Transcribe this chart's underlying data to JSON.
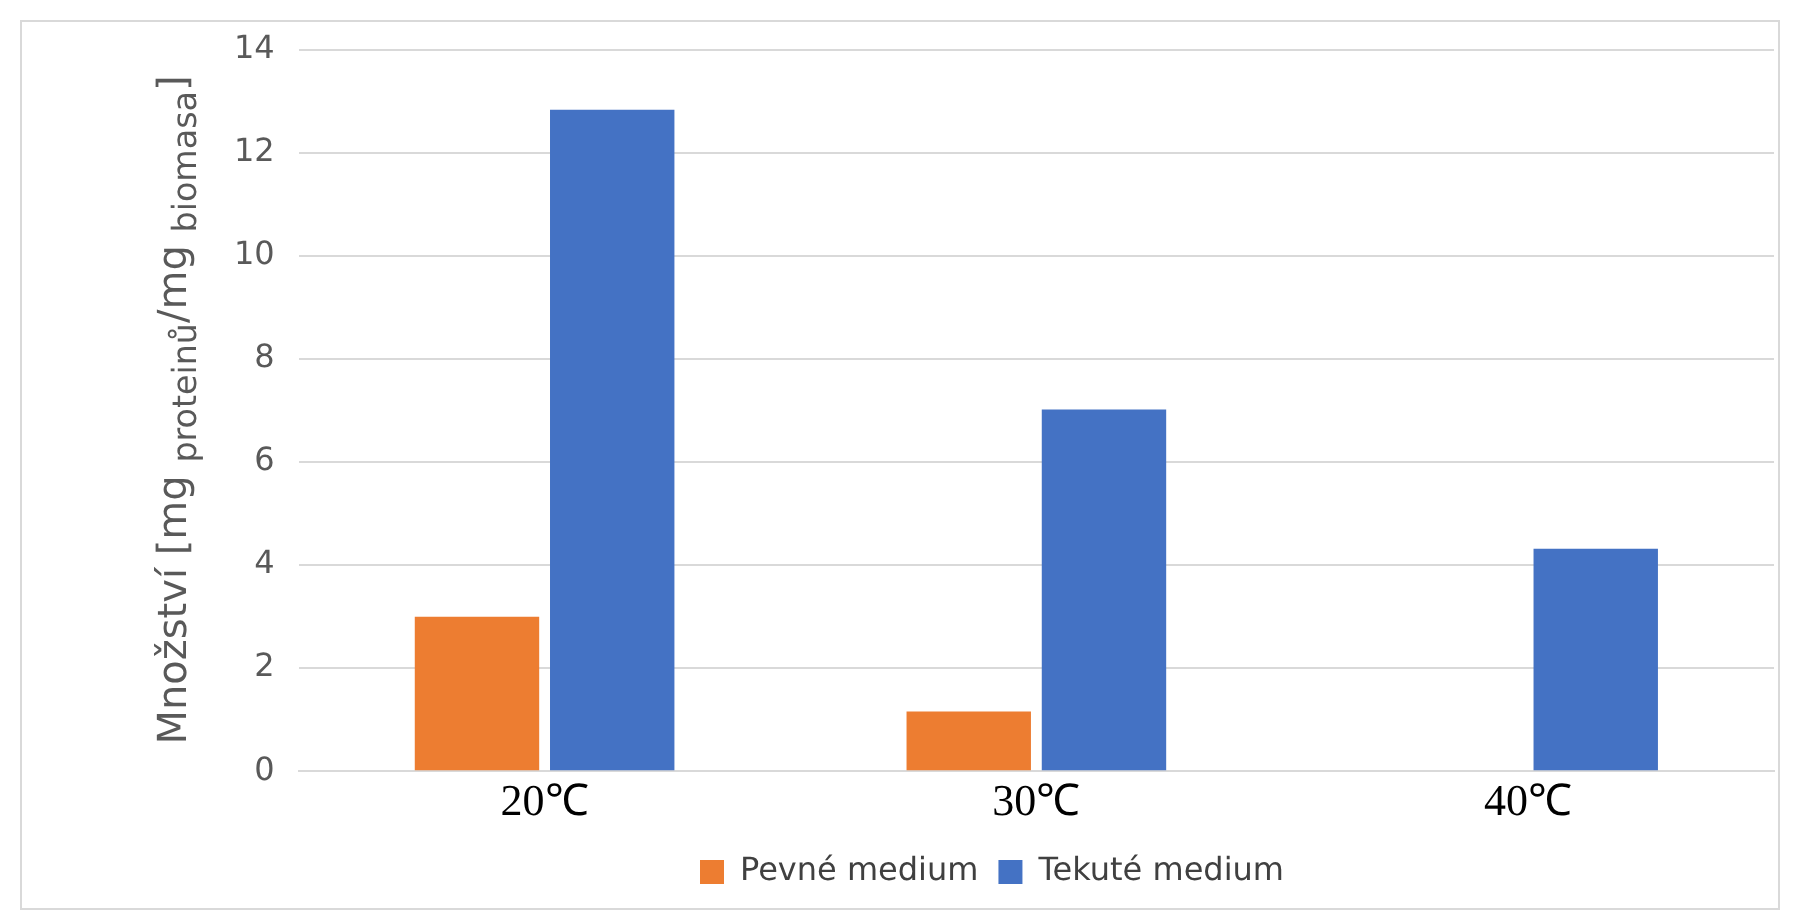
{
  "chart_data": {
    "type": "bar",
    "ylabel": "Množství [mg $_{proteinů}$/mg $_{biomasa}$]",
    "categories": [
      "20℃",
      "30℃",
      "40℃"
    ],
    "series": [
      {
        "name": "Pevné medium",
        "color": "#ed7d31",
        "values": [
          3.0,
          1.16,
          null
        ]
      },
      {
        "name": "Tekuté medium",
        "color": "#4472c4",
        "values": [
          12.84,
          7.02,
          4.32
        ]
      }
    ],
    "ylim": [
      0,
      14
    ],
    "yticks": [
      0,
      2,
      4,
      6,
      8,
      10,
      12,
      14
    ],
    "grid": "y",
    "legend": "bottom"
  }
}
